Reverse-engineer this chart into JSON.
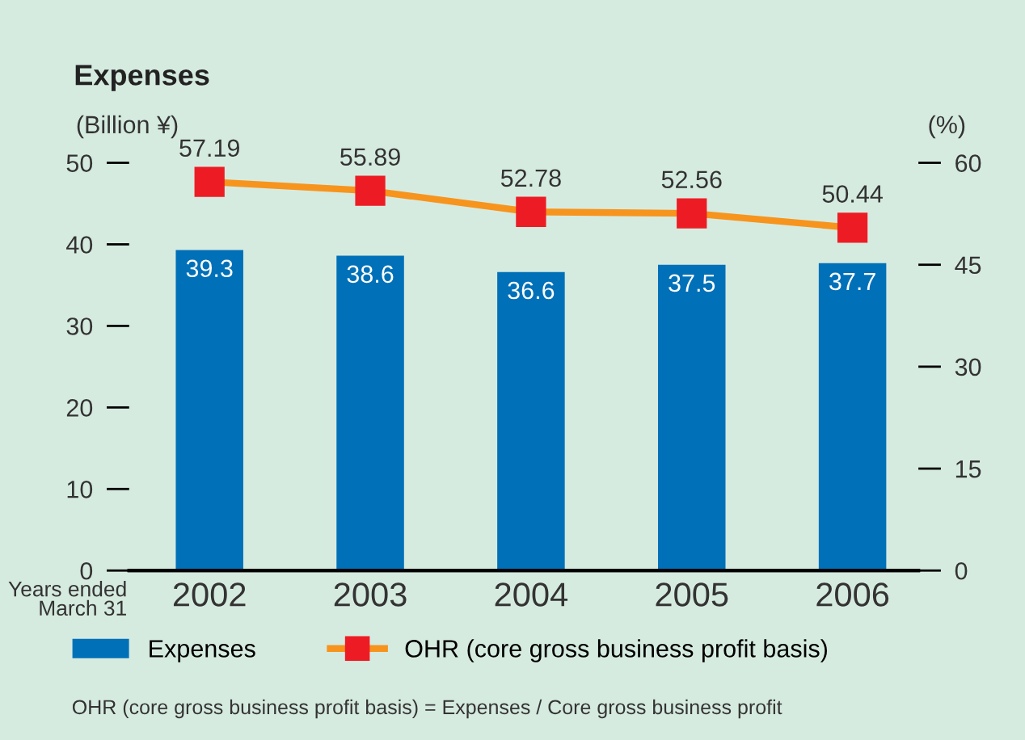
{
  "chart_data": {
    "type": "bar",
    "title": "Expenses",
    "ylabel": "(Billion ¥)",
    "y2label": "(%)",
    "xlabel": "Years ended\nMarch 31",
    "categories": [
      "2002",
      "2003",
      "2004",
      "2005",
      "2006"
    ],
    "series": [
      {
        "name": "Expenses",
        "color": "#0070b8",
        "values": [
          39.3,
          38.6,
          36.6,
          37.5,
          37.7
        ]
      },
      {
        "name": "OHR (core gross business profit basis)",
        "type": "line",
        "axis": "y2",
        "color": "#f7941d",
        "colors": [
          "#ed1c24",
          "#ed1c24",
          "#ed1c24",
          "#ed1c24",
          "#ed1c24"
        ],
        "marker": "square",
        "values": [
          57.19,
          55.89,
          52.78,
          52.56,
          50.44
        ]
      }
    ],
    "ylim": [
      0,
      50
    ],
    "yticks": [
      0,
      10,
      20,
      30,
      40,
      50
    ],
    "y2lim": [
      0,
      60
    ],
    "y2ticks": [
      0,
      15,
      30,
      45,
      60
    ],
    "data_labels": true,
    "grid": false,
    "legend": "bottom",
    "annotations": [
      "OHR (core gross business profit basis) = Expenses / Core gross business profit"
    ]
  }
}
